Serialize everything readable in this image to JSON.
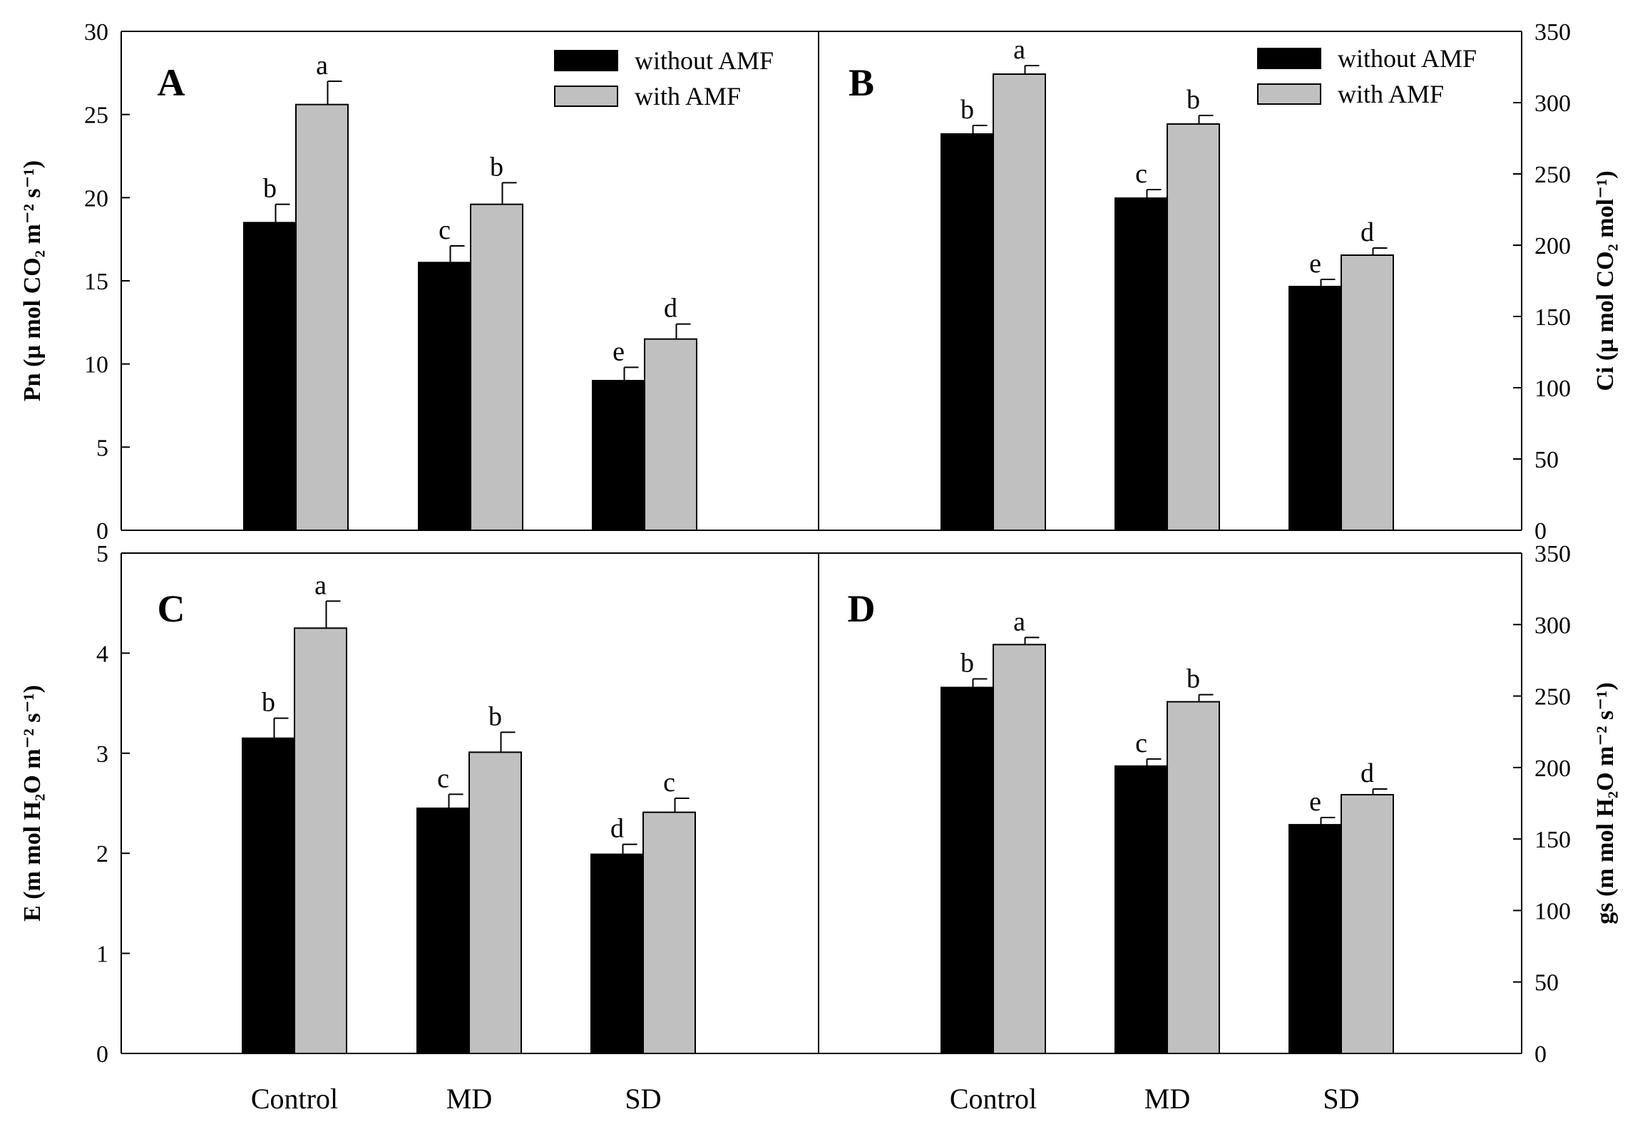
{
  "chart_data": [
    {
      "type": "bar",
      "panel": "A",
      "categories": [
        "Control",
        "MD",
        "SD"
      ],
      "series": [
        {
          "name": "without AMF",
          "values": [
            18.5,
            16.1,
            9.0
          ],
          "errors": [
            1.1,
            1.0,
            0.8
          ],
          "letters": [
            "b",
            "c",
            "e"
          ]
        },
        {
          "name": "with AMF",
          "values": [
            25.6,
            19.6,
            11.5
          ],
          "errors": [
            1.4,
            1.3,
            0.9
          ],
          "letters": [
            "a",
            "b",
            "d"
          ]
        }
      ],
      "ylabel": "Pn (µ mol CO₂ m⁻² s⁻¹)",
      "ylim": [
        0,
        30
      ],
      "yticks": [
        "0",
        "5",
        "10",
        "15",
        "20",
        "25",
        "30"
      ],
      "legend": [
        "without AMF",
        "with AMF"
      ],
      "yaxis_side": "left"
    },
    {
      "type": "bar",
      "panel": "B",
      "categories": [
        "Control",
        "MD",
        "SD"
      ],
      "series": [
        {
          "name": "without AMF",
          "values": [
            278,
            233,
            171
          ],
          "errors": [
            6,
            6,
            5
          ],
          "letters": [
            "b",
            "c",
            "e"
          ]
        },
        {
          "name": "with AMF",
          "values": [
            320,
            285,
            193
          ],
          "errors": [
            6,
            6,
            5
          ],
          "letters": [
            "a",
            "b",
            "d"
          ]
        }
      ],
      "ylabel": "Ci (µ mol CO₂ mol⁻¹)",
      "ylim": [
        0,
        350
      ],
      "yticks": [
        "0",
        "50",
        "100",
        "150",
        "200",
        "250",
        "300",
        "350"
      ],
      "legend": [
        "without AMF",
        "with AMF"
      ],
      "yaxis_side": "right"
    },
    {
      "type": "bar",
      "panel": "C",
      "categories": [
        "Control",
        "MD",
        "SD"
      ],
      "series": [
        {
          "name": "without AMF",
          "values": [
            3.15,
            2.45,
            1.99
          ],
          "errors": [
            0.2,
            0.14,
            0.1
          ],
          "letters": [
            "b",
            "c",
            "d"
          ]
        },
        {
          "name": "with AMF",
          "values": [
            4.25,
            3.01,
            2.41
          ],
          "errors": [
            0.27,
            0.2,
            0.14
          ],
          "letters": [
            "a",
            "b",
            "c"
          ]
        }
      ],
      "ylabel": "E (m mol H₂O m⁻² s⁻¹)",
      "ylim": [
        0,
        5
      ],
      "yticks": [
        "0",
        "1",
        "2",
        "3",
        "4",
        "5"
      ],
      "yaxis_side": "left",
      "show_categories": true
    },
    {
      "type": "bar",
      "panel": "D",
      "categories": [
        "Control",
        "MD",
        "SD"
      ],
      "series": [
        {
          "name": "without AMF",
          "values": [
            256,
            201,
            160
          ],
          "errors": [
            6,
            5,
            5
          ],
          "letters": [
            "b",
            "c",
            "e"
          ]
        },
        {
          "name": "with AMF",
          "values": [
            286,
            246,
            181
          ],
          "errors": [
            5,
            5,
            4
          ],
          "letters": [
            "a",
            "b",
            "d"
          ]
        }
      ],
      "ylabel": "gs (m mol H₂O m⁻² s⁻¹)",
      "ylim": [
        0,
        350
      ],
      "yticks": [
        "0",
        "50",
        "100",
        "150",
        "200",
        "250",
        "300",
        "350"
      ],
      "yaxis_side": "right",
      "show_categories": true
    }
  ],
  "colors": {
    "without_amf": "#000000",
    "with_amf": "#c0c0c0",
    "axis": "#000000"
  }
}
